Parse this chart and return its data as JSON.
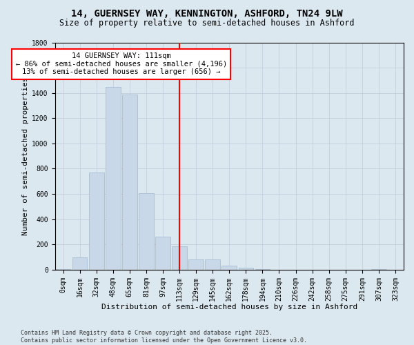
{
  "title_line1": "14, GUERNSEY WAY, KENNINGTON, ASHFORD, TN24 9LW",
  "title_line2": "Size of property relative to semi-detached houses in Ashford",
  "xlabel": "Distribution of semi-detached houses by size in Ashford",
  "ylabel": "Number of semi-detached properties",
  "categories": [
    "0sqm",
    "16sqm",
    "32sqm",
    "48sqm",
    "65sqm",
    "81sqm",
    "97sqm",
    "113sqm",
    "129sqm",
    "145sqm",
    "162sqm",
    "178sqm",
    "194sqm",
    "210sqm",
    "226sqm",
    "242sqm",
    "258sqm",
    "275sqm",
    "291sqm",
    "307sqm",
    "323sqm"
  ],
  "values": [
    5,
    100,
    770,
    1450,
    1390,
    605,
    260,
    185,
    80,
    80,
    30,
    15,
    5,
    0,
    0,
    0,
    0,
    0,
    0,
    5,
    0
  ],
  "bar_color": "#c8d8e8",
  "bar_edge_color": "#a0b8d0",
  "vline_x_index": 7,
  "vline_color": "red",
  "annotation_text": "14 GUERNSEY WAY: 111sqm\n← 86% of semi-detached houses are smaller (4,196)\n13% of semi-detached houses are larger (656) →",
  "annotation_box_color": "white",
  "annotation_box_edge": "red",
  "ylim": [
    0,
    1800
  ],
  "yticks": [
    0,
    200,
    400,
    600,
    800,
    1000,
    1200,
    1400,
    1600,
    1800
  ],
  "grid_color": "#c0c8d8",
  "bg_color": "#dce8f0",
  "plot_bg_color": "#dce8f0",
  "footnote": "Contains HM Land Registry data © Crown copyright and database right 2025.\nContains public sector information licensed under the Open Government Licence v3.0.",
  "title_fontsize": 10,
  "subtitle_fontsize": 8.5,
  "xlabel_fontsize": 8,
  "ylabel_fontsize": 8,
  "tick_fontsize": 7,
  "annot_fontsize": 7.5,
  "footnote_fontsize": 6
}
